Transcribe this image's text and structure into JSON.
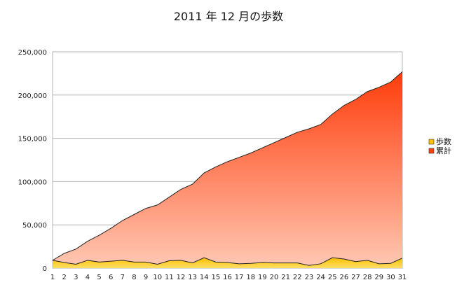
{
  "chart_data": {
    "type": "area",
    "title": "2011 年 12 月の歩数",
    "xlabel": "",
    "ylabel": "",
    "categories": [
      1,
      2,
      3,
      4,
      5,
      6,
      7,
      8,
      9,
      10,
      11,
      12,
      13,
      14,
      15,
      16,
      17,
      18,
      19,
      20,
      21,
      22,
      23,
      24,
      25,
      26,
      27,
      28,
      29,
      30,
      31
    ],
    "ylim": [
      0,
      250000
    ],
    "yticks": [
      "0",
      "50,000",
      "100,000",
      "150,000",
      "200,000",
      "250,000"
    ],
    "grid": true,
    "legend_position": "right",
    "series": [
      {
        "name": "累計",
        "color": "#ff4010",
        "values": [
          9000,
          17000,
          22000,
          31000,
          38000,
          46000,
          55000,
          62000,
          69000,
          73000,
          82000,
          91000,
          97000,
          110000,
          117000,
          123000,
          128000,
          133000,
          139000,
          145000,
          151000,
          157000,
          161000,
          166000,
          178000,
          188000,
          195000,
          204000,
          209000,
          215000,
          227000
        ]
      },
      {
        "name": "歩数",
        "color": "#ffc000",
        "values": [
          9000,
          6500,
          4500,
          9000,
          7000,
          8000,
          9000,
          7000,
          7000,
          4500,
          8500,
          9000,
          6000,
          12000,
          7000,
          6500,
          5000,
          5500,
          6500,
          6000,
          6000,
          6000,
          3000,
          5000,
          12000,
          10500,
          7500,
          9000,
          5000,
          5500,
          11500
        ]
      }
    ]
  }
}
